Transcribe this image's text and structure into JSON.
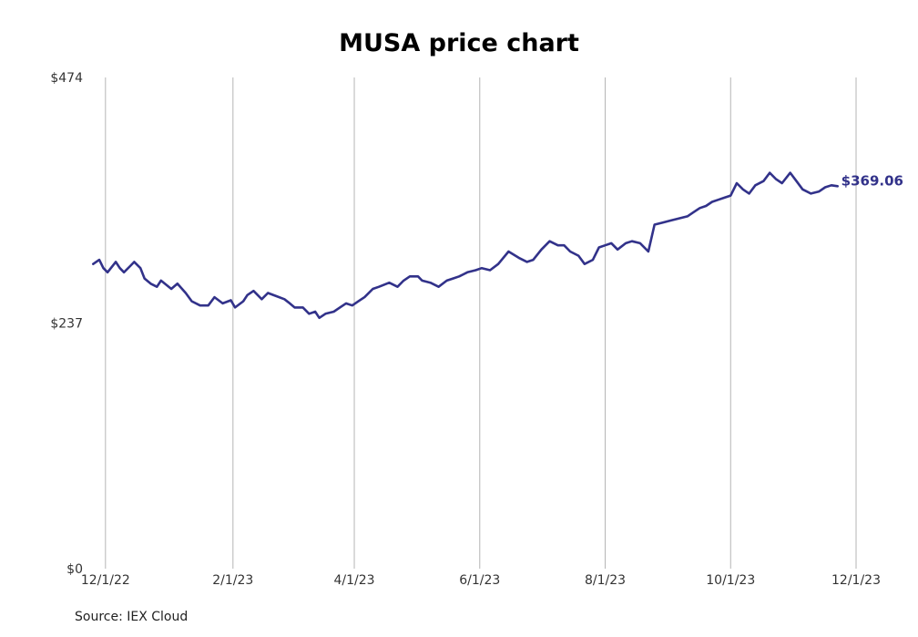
{
  "chart_data": {
    "type": "line",
    "title": "MUSA price chart",
    "xlabel": "",
    "ylabel": "",
    "x_ticks": [
      "12/1/22",
      "2/1/23",
      "4/1/23",
      "6/1/23",
      "8/1/23",
      "10/1/23",
      "12/1/23"
    ],
    "y_ticks": [
      "$0",
      "$237",
      "$474"
    ],
    "ylim": [
      0,
      474
    ],
    "xlim": [
      "2022-11-24",
      "2023-12-01"
    ],
    "grid": "vertical",
    "legend": "none",
    "last_value_label": "$369.06",
    "line_color": "#32328a",
    "series": [
      {
        "x": [
          "2022-11-25",
          "2022-11-28",
          "2022-11-30",
          "2022-12-02",
          "2022-12-06",
          "2022-12-08",
          "2022-12-10",
          "2022-12-13",
          "2022-12-15",
          "2022-12-18",
          "2022-12-20",
          "2022-12-23",
          "2022-12-26",
          "2022-12-28",
          "2023-01-02",
          "2023-01-05",
          "2023-01-09",
          "2023-01-12",
          "2023-01-16",
          "2023-01-20",
          "2023-01-23",
          "2023-01-27",
          "2023-01-31",
          "2023-02-02",
          "2023-02-06",
          "2023-02-08",
          "2023-02-11",
          "2023-02-15",
          "2023-02-18",
          "2023-02-22",
          "2023-02-26",
          "2023-02-28",
          "2023-03-03",
          "2023-03-07",
          "2023-03-10",
          "2023-03-13",
          "2023-03-15",
          "2023-03-18",
          "2023-03-22",
          "2023-03-25",
          "2023-03-28",
          "2023-03-31",
          "2023-04-03",
          "2023-04-06",
          "2023-04-10",
          "2023-04-13",
          "2023-04-18",
          "2023-04-22",
          "2023-04-25",
          "2023-04-28",
          "2023-05-02",
          "2023-05-04",
          "2023-05-08",
          "2023-05-12",
          "2023-05-16",
          "2023-05-19",
          "2023-05-22",
          "2023-05-26",
          "2023-05-30",
          "2023-06-02",
          "2023-06-06",
          "2023-06-10",
          "2023-06-15",
          "2023-06-20",
          "2023-06-24",
          "2023-06-27",
          "2023-07-01",
          "2023-07-05",
          "2023-07-09",
          "2023-07-12",
          "2023-07-15",
          "2023-07-19",
          "2023-07-22",
          "2023-07-26",
          "2023-07-29",
          "2023-08-01",
          "2023-08-04",
          "2023-08-07",
          "2023-08-11",
          "2023-08-14",
          "2023-08-18",
          "2023-08-22",
          "2023-08-25",
          "2023-08-29",
          "2023-09-02",
          "2023-09-06",
          "2023-09-10",
          "2023-09-13",
          "2023-09-16",
          "2023-09-19",
          "2023-09-22",
          "2023-09-25",
          "2023-09-28",
          "2023-10-01",
          "2023-10-04",
          "2023-10-07",
          "2023-10-10",
          "2023-10-13",
          "2023-10-17",
          "2023-10-20",
          "2023-10-23",
          "2023-10-26",
          "2023-10-30",
          "2023-11-02",
          "2023-11-05",
          "2023-11-09",
          "2023-11-13",
          "2023-11-16",
          "2023-11-19",
          "2023-11-22"
        ],
        "y": [
          294,
          298,
          290,
          286,
          296,
          290,
          286,
          292,
          296,
          290,
          280,
          275,
          272,
          278,
          270,
          275,
          266,
          258,
          254,
          254,
          262,
          256,
          259,
          252,
          258,
          264,
          268,
          260,
          266,
          263,
          260,
          257,
          252,
          252,
          246,
          248,
          242,
          246,
          248,
          252,
          256,
          254,
          258,
          262,
          270,
          272,
          276,
          272,
          278,
          282,
          282,
          278,
          276,
          272,
          278,
          280,
          282,
          286,
          288,
          290,
          288,
          294,
          306,
          300,
          296,
          298,
          308,
          316,
          312,
          312,
          306,
          302,
          294,
          298,
          310,
          312,
          314,
          308,
          314,
          316,
          314,
          306,
          332,
          334,
          336,
          338,
          340,
          344,
          348,
          350,
          354,
          356,
          358,
          360,
          372,
          366,
          362,
          370,
          374,
          382,
          376,
          372,
          382,
          374,
          366,
          362,
          364,
          368,
          370,
          369.06
        ]
      }
    ]
  },
  "source_note": "Source: IEX Cloud"
}
